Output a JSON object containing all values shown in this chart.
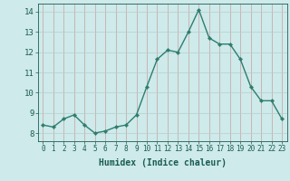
{
  "x": [
    0,
    1,
    2,
    3,
    4,
    5,
    6,
    7,
    8,
    9,
    10,
    11,
    12,
    13,
    14,
    15,
    16,
    17,
    18,
    19,
    20,
    21,
    22,
    23
  ],
  "y": [
    8.4,
    8.3,
    8.7,
    8.9,
    8.4,
    8.0,
    8.1,
    8.3,
    8.4,
    8.9,
    10.3,
    11.65,
    12.1,
    12.0,
    13.0,
    14.1,
    12.7,
    12.4,
    12.4,
    11.65,
    10.3,
    9.6,
    9.6,
    8.7
  ],
  "line_color": "#2e7d6e",
  "marker": "D",
  "marker_size": 2.2,
  "linewidth": 1.0,
  "bg_color": "#ceeaea",
  "grid_color_v": "#c8a0a0",
  "grid_color_h": "#b8cccc",
  "xlabel": "Humidex (Indice chaleur)",
  "xlabel_color": "#1a5c52",
  "tick_color": "#1a5c52",
  "xlim": [
    -0.5,
    23.5
  ],
  "ylim": [
    7.6,
    14.4
  ],
  "yticks": [
    8,
    9,
    10,
    11,
    12,
    13,
    14
  ],
  "xticks": [
    0,
    1,
    2,
    3,
    4,
    5,
    6,
    7,
    8,
    9,
    10,
    11,
    12,
    13,
    14,
    15,
    16,
    17,
    18,
    19,
    20,
    21,
    22,
    23
  ],
  "tick_fontsize": 5.5,
  "ytick_fontsize": 6.5,
  "xlabel_fontsize": 7.0
}
